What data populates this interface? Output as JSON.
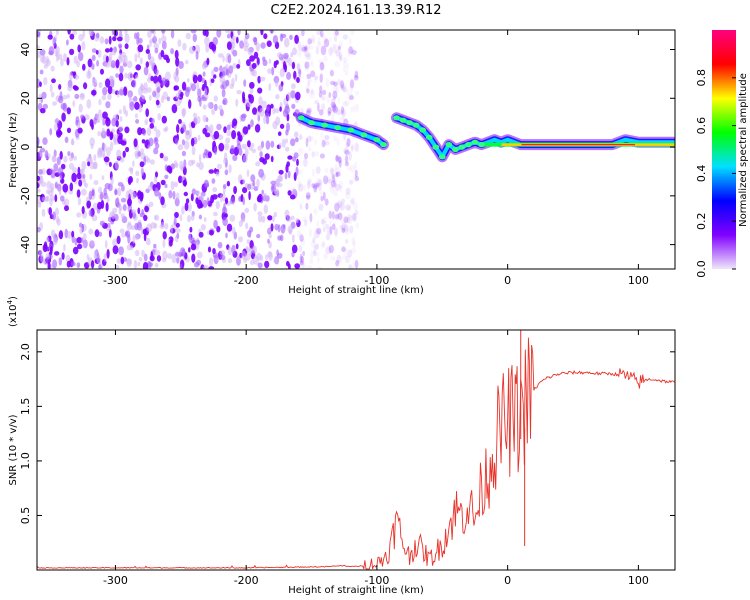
{
  "chart_data": [
    {
      "type": "heatmap",
      "title": "C2E2.2024.161.13.39.R12",
      "xlabel": "Height of straight line (km)",
      "ylabel": "Frequency (Hz)",
      "xlim": [
        -360,
        128
      ],
      "ylim": [
        -50,
        48
      ],
      "xticks": [
        -300,
        -200,
        -100,
        0,
        100
      ],
      "yticks": [
        40,
        20,
        0,
        -20,
        -40
      ],
      "noise_region_km": [
        -360,
        -115
      ],
      "ridge": {
        "name": "Spectral peak track",
        "x": [
          -158,
          -150,
          -140,
          -130,
          -120,
          -110,
          -100,
          -95,
          -85,
          -80,
          -75,
          -70,
          -65,
          -60,
          -55,
          -50,
          -45,
          -40,
          -35,
          -30,
          -25,
          -20,
          -15,
          -10,
          -5,
          0,
          10,
          20,
          40,
          60,
          80,
          90,
          100,
          110,
          128
        ],
        "y": [
          12,
          10,
          9,
          8,
          7,
          5,
          3,
          1,
          12,
          11,
          10,
          9,
          7,
          4,
          0,
          -4,
          1,
          -1,
          0,
          1,
          2,
          1,
          2,
          3,
          2,
          3,
          1,
          1,
          1,
          1,
          1,
          3,
          2,
          2,
          2
        ]
      },
      "colorbar": {
        "label": "Normalized spectral amplitude",
        "ticks": [
          0.0,
          0.2,
          0.4,
          0.6,
          0.8
        ],
        "range": [
          0,
          1
        ],
        "colors": [
          "#f0e6fa",
          "#8000ff",
          "#0000ff",
          "#00e0ff",
          "#00ff00",
          "#ffff00",
          "#ff0000",
          "#ff0080"
        ]
      }
    },
    {
      "type": "line",
      "xlabel": "Height of straight line (km)",
      "ylabel": "SNR (10 * v/v)",
      "y_multiplier": "(x10",
      "y_multiplier_exp": "4",
      "y_multiplier_close": ")",
      "xlim": [
        -360,
        128
      ],
      "ylim": [
        0,
        2.2
      ],
      "xticks": [
        -300,
        -200,
        -100,
        0,
        100
      ],
      "yticks": [
        0.5,
        1.0,
        1.5,
        2.0
      ],
      "ytick_labels": [
        "0.5",
        "1.0",
        "1.5",
        "2.0"
      ],
      "series": [
        {
          "name": "SNR",
          "color": "#e8322a",
          "x": [
            -360,
            -300,
            -200,
            -140,
            -125,
            -120,
            -110,
            -100,
            -95,
            -90,
            -85,
            -80,
            -75,
            -70,
            -65,
            -60,
            -55,
            -50,
            -45,
            -40,
            -35,
            -30,
            -25,
            -20,
            -15,
            -10,
            -5,
            0,
            5,
            8,
            10,
            12,
            15,
            20,
            25,
            30,
            40,
            50,
            60,
            70,
            80,
            90,
            95,
            100,
            105,
            110,
            120,
            128
          ],
          "y": [
            0.02,
            0.02,
            0.02,
            0.03,
            0.04,
            0.03,
            0.04,
            0.06,
            0.1,
            0.2,
            0.45,
            0.25,
            0.12,
            0.25,
            0.18,
            0.1,
            0.15,
            0.25,
            0.38,
            0.55,
            0.5,
            0.62,
            0.45,
            0.75,
            0.9,
            1.15,
            1.3,
            1.35,
            1.4,
            1.38,
            1.42,
            1.5,
            1.58,
            1.65,
            1.72,
            1.76,
            1.8,
            1.81,
            1.81,
            1.8,
            1.8,
            1.78,
            1.75,
            1.72,
            1.74,
            1.75,
            1.73,
            1.72
          ]
        }
      ]
    }
  ]
}
